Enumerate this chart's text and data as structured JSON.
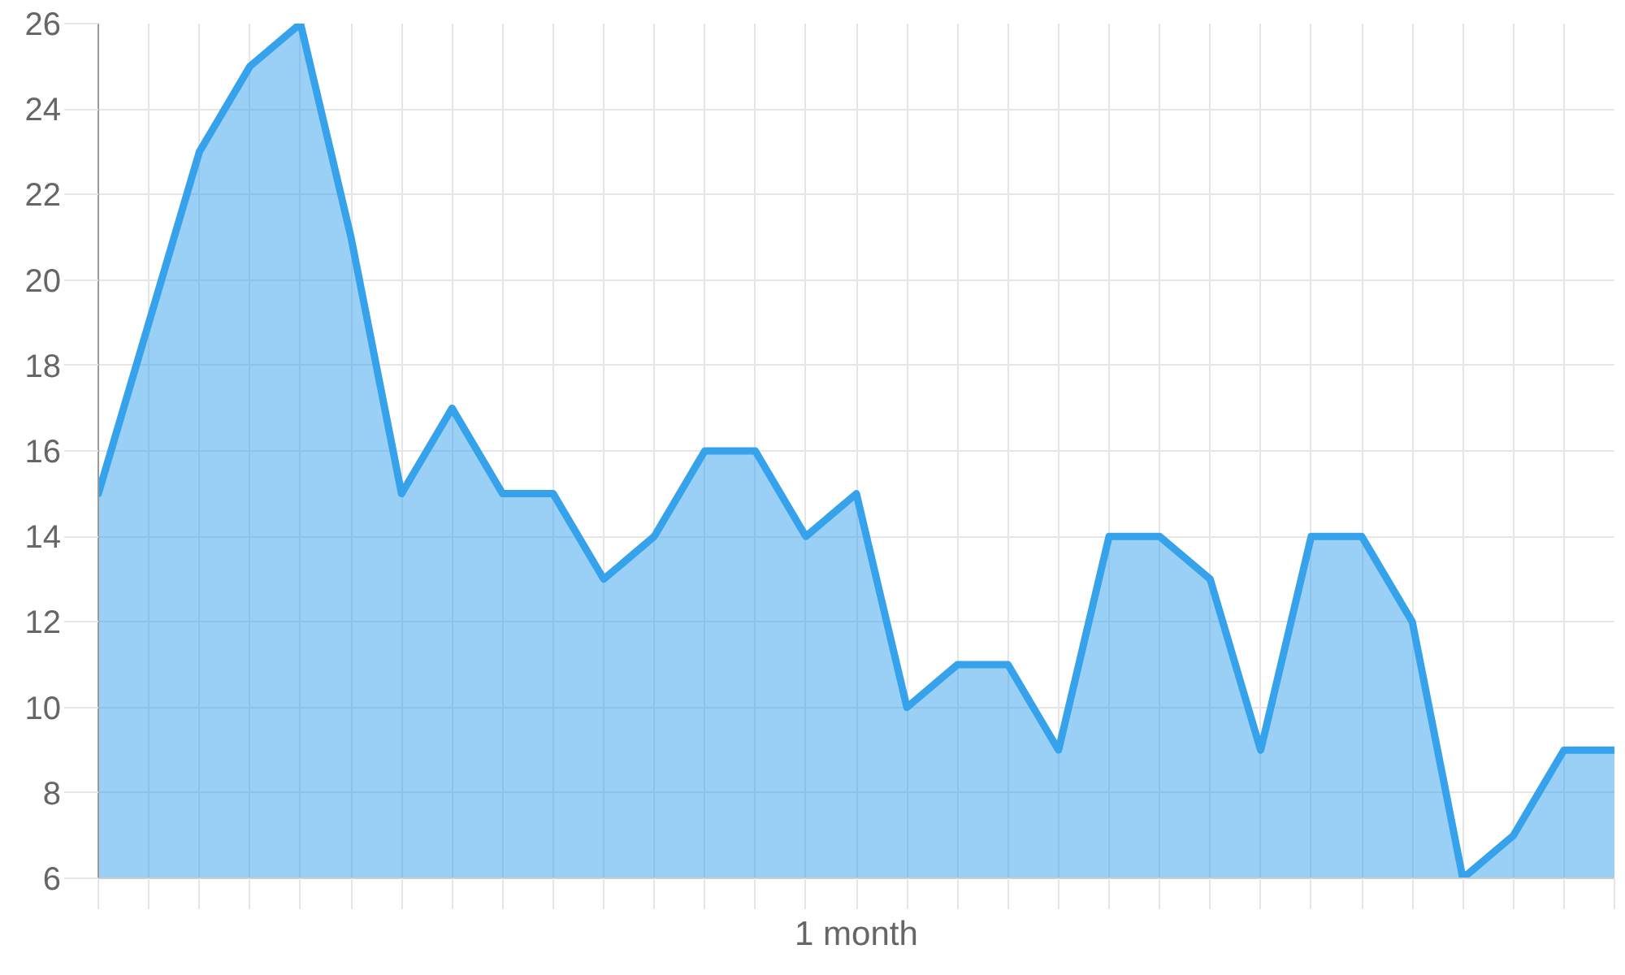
{
  "chart_data": {
    "type": "area",
    "xlabel": "1 month",
    "color": "#36a2eb",
    "categories": [
      null,
      null,
      null,
      null,
      null,
      null,
      null,
      null,
      null,
      null,
      null,
      null,
      null,
      null,
      null,
      null,
      null,
      null,
      null,
      null,
      null,
      null,
      null,
      null,
      null,
      null,
      null,
      null,
      null,
      null,
      null
    ],
    "values": [
      15,
      19,
      23,
      25,
      26,
      21,
      15,
      17,
      15,
      15,
      13,
      14,
      16,
      16,
      14,
      15,
      10,
      11,
      11,
      9,
      14,
      14,
      13,
      9,
      14,
      14,
      12,
      6,
      7,
      9,
      9
    ],
    "ylim": [
      6,
      26
    ],
    "yticks": [
      6,
      8,
      10,
      12,
      14,
      16,
      18,
      20,
      22,
      24,
      26
    ],
    "grid": true
  }
}
